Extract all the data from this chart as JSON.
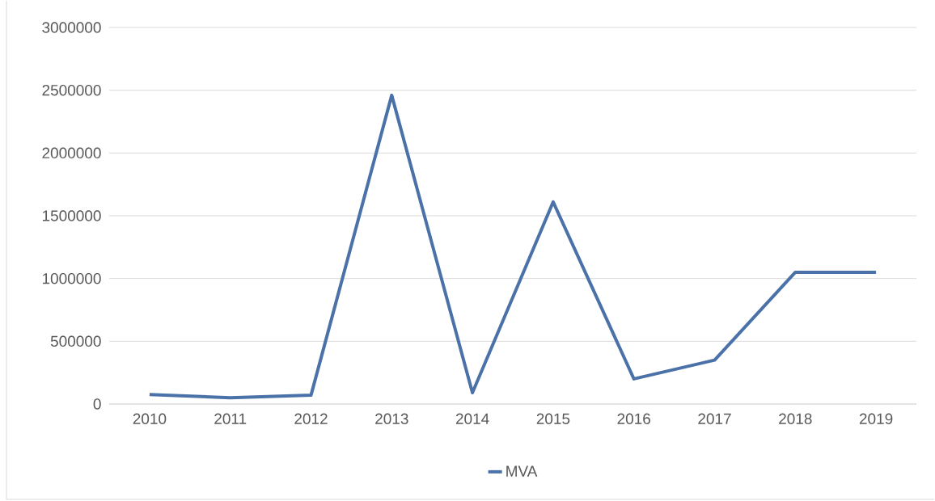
{
  "chart_data": {
    "type": "line",
    "categories": [
      "2010",
      "2011",
      "2012",
      "2013",
      "2014",
      "2015",
      "2016",
      "2017",
      "2018",
      "2019"
    ],
    "series": [
      {
        "name": "MVA",
        "color": "#4a72a8",
        "values": [
          75000,
          50000,
          70000,
          2460000,
          90000,
          1610000,
          200000,
          350000,
          1050000,
          1050000
        ]
      }
    ],
    "ylim": [
      0,
      3000000
    ],
    "yticks": [
      0,
      500000,
      1000000,
      1500000,
      2000000,
      2500000,
      3000000
    ],
    "grid": "y",
    "legend": "bottom",
    "marker": "none",
    "line_style": "solid"
  }
}
